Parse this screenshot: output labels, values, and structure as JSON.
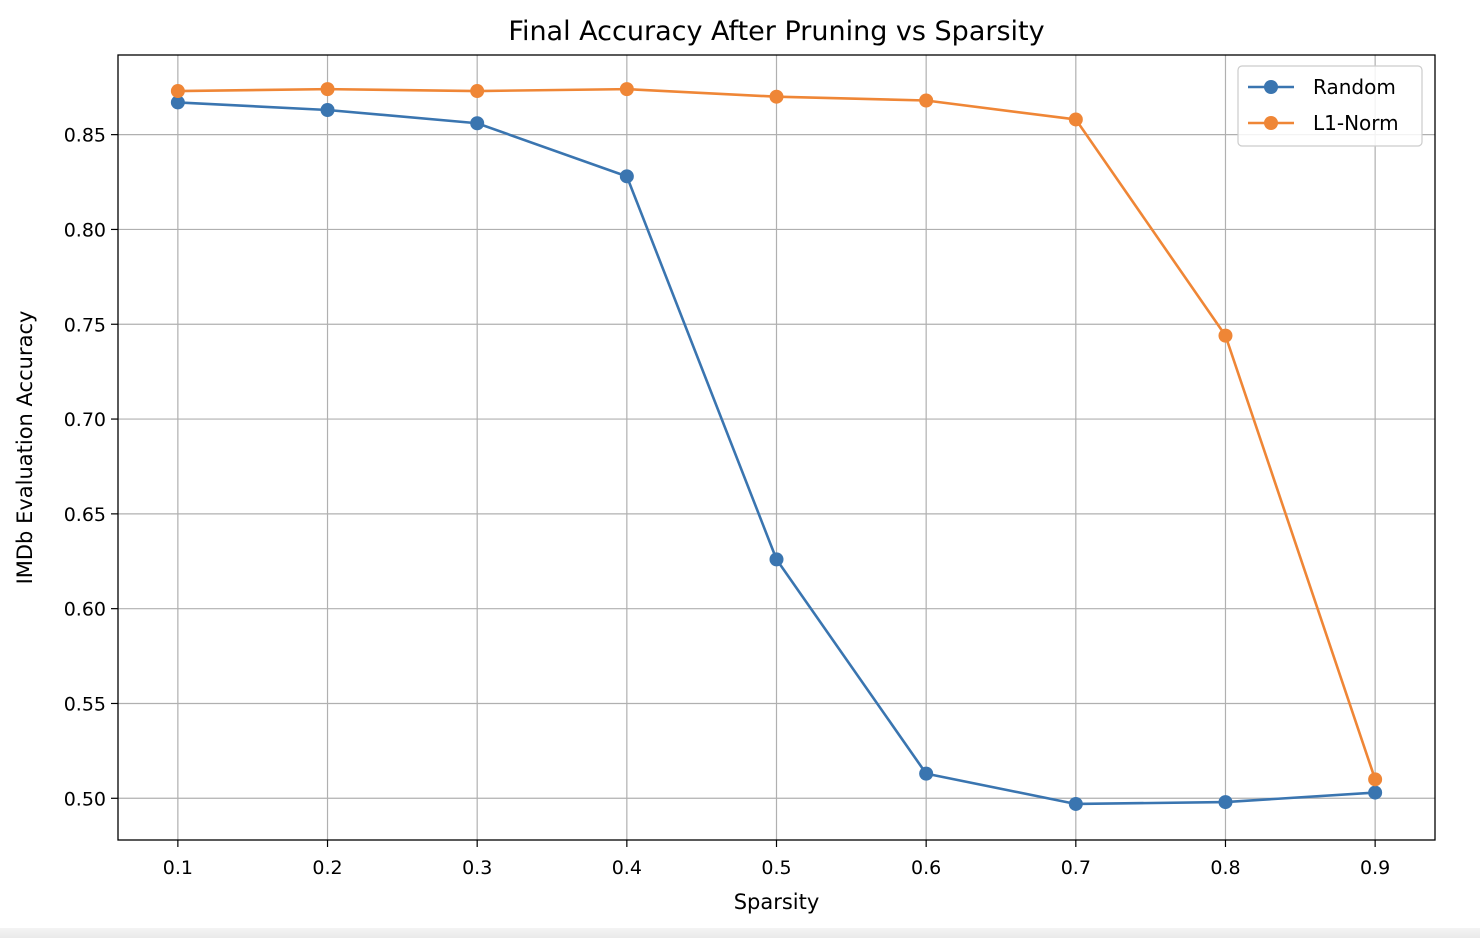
{
  "chart_data": {
    "type": "line",
    "title": "Final Accuracy After Pruning vs Sparsity",
    "xlabel": "Sparsity",
    "ylabel": "IMDb Evaluation Accuracy",
    "x": [
      0.1,
      0.2,
      0.3,
      0.4,
      0.5,
      0.6,
      0.7,
      0.8,
      0.9
    ],
    "x_tick_labels": [
      "0.1",
      "0.2",
      "0.3",
      "0.4",
      "0.5",
      "0.6",
      "0.7",
      "0.8",
      "0.9"
    ],
    "y_ticks": [
      0.5,
      0.55,
      0.6,
      0.65,
      0.7,
      0.75,
      0.8,
      0.85
    ],
    "y_tick_labels": [
      "0.50",
      "0.55",
      "0.60",
      "0.65",
      "0.70",
      "0.75",
      "0.80",
      "0.85"
    ],
    "xlim": [
      0.06,
      0.94
    ],
    "ylim": [
      0.478,
      0.892
    ],
    "grid": true,
    "legend_position": "top-right",
    "series": [
      {
        "name": "Random",
        "color": "#3a75b0",
        "marker": "circle",
        "values": [
          0.867,
          0.863,
          0.856,
          0.828,
          0.626,
          0.513,
          0.497,
          0.498,
          0.503
        ]
      },
      {
        "name": "L1-Norm",
        "color": "#ef8636",
        "marker": "circle",
        "values": [
          0.873,
          0.874,
          0.873,
          0.874,
          0.87,
          0.868,
          0.858,
          0.744,
          0.51
        ]
      }
    ]
  }
}
